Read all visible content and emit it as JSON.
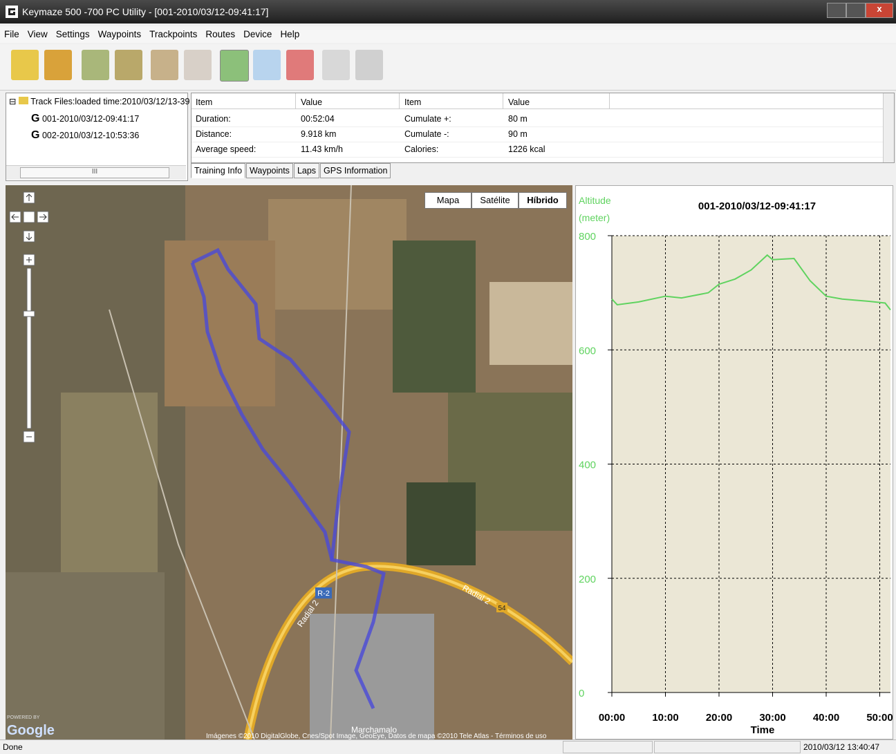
{
  "window": {
    "title": "Keymaze 500 -700 PC Utility - [001-2010/03/12-09:41:17]"
  },
  "menu": [
    "File",
    "View",
    "Settings",
    "Waypoints",
    "Trackpoints",
    "Routes",
    "Device",
    "Help"
  ],
  "tree": {
    "root": "Track Files:loaded time:2010/03/12/13-39",
    "items": [
      "001-2010/03/12-09:41:17",
      "002-2010/03/12-10:53:36"
    ],
    "scroll_grip": "III"
  },
  "info_table": {
    "headers": [
      "Item",
      "Value",
      "Item",
      "Value"
    ],
    "rows": [
      [
        "Duration:",
        "00:52:04",
        "Cumulate +:",
        "80 m"
      ],
      [
        "Distance:",
        "9.918 km",
        "Cumulate -:",
        "90 m"
      ],
      [
        "Average speed:",
        "11.43 km/h",
        "Calories:",
        "1226 kcal"
      ]
    ]
  },
  "tabs": [
    "Training Info",
    "Waypoints",
    "Laps",
    "GPS Information"
  ],
  "map": {
    "buttons": [
      "Mapa",
      "Satélite",
      "Híbrido"
    ],
    "labels": {
      "road_sign": "R-2",
      "road_1": "Radial 2",
      "road_2": "Radial 2",
      "road_number": "54",
      "town": "Marchamalo"
    },
    "attribution": "Imágenes ©2010 DigitalGlobe, Cnes/Spot Image, GeoEye, Datos de mapa ©2010 Tele Atlas - Términos de uso",
    "logo_small": "POWERED BY",
    "logo": "Google"
  },
  "chart_data": {
    "type": "line",
    "title": "001-2010/03/12-09:41:17",
    "y_label": "Altitude",
    "y_unit": "(meter)",
    "x_label": "Time",
    "x": [
      0,
      1,
      5,
      10,
      13,
      18,
      20,
      23,
      26,
      29,
      30,
      34,
      37,
      40,
      43,
      48,
      51,
      52
    ],
    "series": [
      {
        "name": "Altitude",
        "color": "#5fd35f",
        "values": [
          689,
          679,
          684,
          694,
          691,
          700,
          715,
          724,
          740,
          766,
          758,
          760,
          721,
          694,
          689,
          685,
          682,
          670
        ]
      }
    ],
    "xlim": [
      0,
      52
    ],
    "ylim": [
      0,
      800
    ],
    "xticks": [
      {
        "value": 0,
        "label": "00:00"
      },
      {
        "value": 10,
        "label": "10:00"
      },
      {
        "value": 20,
        "label": "20:00"
      },
      {
        "value": 30,
        "label": "30:00"
      },
      {
        "value": 40,
        "label": "40:00"
      },
      {
        "value": 50,
        "label": "50:00"
      }
    ],
    "yticks": [
      0,
      200,
      400,
      600,
      800
    ],
    "grid": true
  },
  "status": {
    "text": "Done",
    "time": "2010/03/12 13:40:47"
  }
}
